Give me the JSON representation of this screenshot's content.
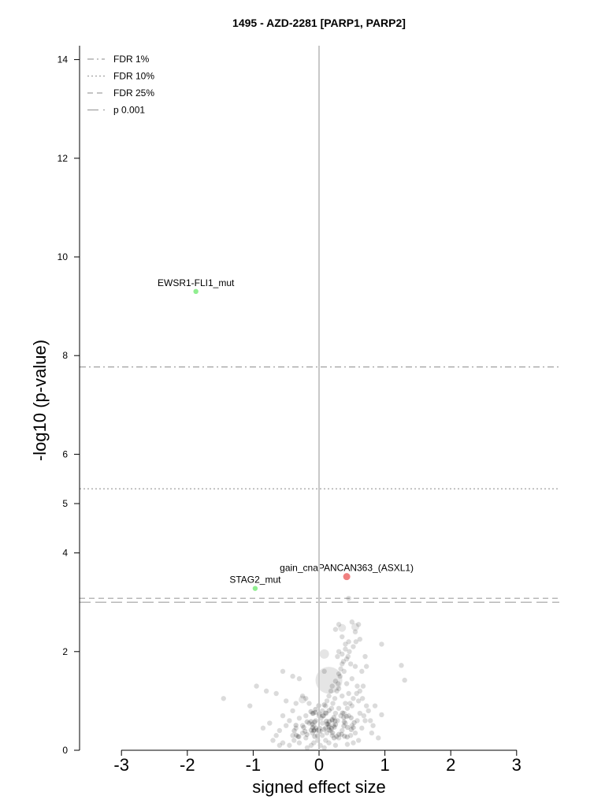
{
  "chart_data": {
    "type": "scatter",
    "title": "1495 - AZD-2281 [PARP1, PARP2]",
    "xlabel": "signed effect size",
    "ylabel": "-log10 (p-value)",
    "xlim": [
      -3.6,
      3.65
    ],
    "ylim": [
      0,
      14.3
    ],
    "x_ticks": [
      -3,
      -2,
      -1,
      0,
      1,
      2,
      3
    ],
    "y_ticks": [
      0,
      2,
      4,
      5,
      6,
      8,
      10,
      12,
      14
    ],
    "grid": false,
    "legend_position": "top-left",
    "thresholds": [
      {
        "name": "FDR 1%",
        "y": 7.77,
        "style": "dashdot"
      },
      {
        "name": "FDR 10%",
        "y": 5.3,
        "style": "dotted"
      },
      {
        "name": "FDR 25%",
        "y": 3.08,
        "style": "dashed"
      },
      {
        "name": "p 0.001",
        "y": 3.0,
        "style": "longdash"
      }
    ],
    "highlighted_points": [
      {
        "label": "EWSR1-FLI1_mut",
        "x": -1.87,
        "y": 9.3,
        "color": "#90ee90"
      },
      {
        "label": "gain_cnaPANCAN363_(ASXL1)",
        "x": 0.42,
        "y": 3.52,
        "color": "#f08080"
      },
      {
        "label": "STAG2_mut",
        "x": -0.97,
        "y": 3.28,
        "color": "#90ee90"
      }
    ],
    "background_points": [
      [
        0.45,
        3.08
      ],
      [
        -1.45,
        1.05
      ],
      [
        -0.95,
        1.3
      ],
      [
        -1.05,
        0.9
      ],
      [
        -0.55,
        1.6
      ],
      [
        -0.4,
        1.5
      ],
      [
        -0.3,
        1.45
      ],
      [
        -0.8,
        1.2
      ],
      [
        -0.65,
        1.15
      ],
      [
        -0.2,
        1.05
      ],
      [
        0.3,
        2.55
      ],
      [
        0.25,
        2.45
      ],
      [
        0.35,
        2.3
      ],
      [
        0.4,
        2.15
      ],
      [
        0.3,
        2.0
      ],
      [
        0.28,
        1.9
      ],
      [
        0.5,
        2.6
      ],
      [
        0.6,
        2.55
      ],
      [
        0.55,
        2.4
      ],
      [
        0.62,
        2.25
      ],
      [
        0.45,
        2.2
      ],
      [
        0.4,
        2.05
      ],
      [
        0.35,
        1.95
      ],
      [
        0.42,
        1.85
      ],
      [
        0.48,
        1.75
      ],
      [
        0.55,
        1.7
      ],
      [
        0.65,
        1.6
      ],
      [
        0.38,
        1.6
      ],
      [
        0.3,
        1.55
      ],
      [
        0.25,
        1.4
      ],
      [
        0.2,
        1.3
      ],
      [
        0.18,
        1.2
      ],
      [
        0.15,
        1.1
      ],
      [
        0.12,
        1.0
      ],
      [
        0.3,
        1.25
      ],
      [
        0.35,
        1.1
      ],
      [
        0.42,
        1.35
      ],
      [
        0.5,
        1.45
      ],
      [
        0.58,
        1.3
      ],
      [
        0.45,
        1.15
      ],
      [
        0.6,
        1.0
      ],
      [
        0.5,
        0.9
      ],
      [
        0.4,
        0.95
      ],
      [
        0.7,
        1.9
      ],
      [
        0.72,
        1.7
      ],
      [
        0.95,
        2.15
      ],
      [
        1.25,
        1.72
      ],
      [
        1.3,
        1.42
      ],
      [
        0.85,
        0.9
      ],
      [
        0.95,
        0.72
      ],
      [
        0.7,
        0.6
      ],
      [
        0.8,
        0.35
      ],
      [
        0.9,
        0.25
      ],
      [
        0.08,
        1.6
      ],
      [
        0.1,
        0.9
      ],
      [
        0.05,
        0.8
      ],
      [
        0.0,
        0.7
      ],
      [
        -0.05,
        0.6
      ],
      [
        -0.1,
        0.75
      ],
      [
        -0.15,
        0.55
      ],
      [
        -0.2,
        0.7
      ],
      [
        -0.25,
        0.5
      ],
      [
        -0.3,
        0.65
      ],
      [
        -0.35,
        0.45
      ],
      [
        -0.4,
        0.8
      ],
      [
        -0.45,
        0.6
      ],
      [
        -0.5,
        0.5
      ],
      [
        -0.55,
        0.7
      ],
      [
        -0.6,
        0.4
      ],
      [
        -0.65,
        0.3
      ],
      [
        -0.7,
        0.2
      ],
      [
        -0.5,
        1.0
      ],
      [
        -0.35,
        0.95
      ],
      [
        -0.25,
        1.1
      ],
      [
        -0.15,
        0.95
      ],
      [
        -0.1,
        0.35
      ],
      [
        -0.2,
        0.25
      ],
      [
        -0.3,
        0.15
      ],
      [
        -0.4,
        0.3
      ],
      [
        -0.45,
        0.1
      ],
      [
        0.05,
        0.3
      ],
      [
        0.1,
        0.2
      ],
      [
        0.15,
        0.15
      ],
      [
        0.2,
        0.3
      ],
      [
        0.25,
        0.1
      ],
      [
        0.3,
        0.25
      ],
      [
        0.35,
        0.4
      ],
      [
        0.4,
        0.55
      ],
      [
        0.45,
        0.7
      ],
      [
        0.5,
        0.5
      ],
      [
        0.55,
        0.35
      ],
      [
        0.6,
        0.2
      ],
      [
        0.65,
        0.45
      ],
      [
        0.2,
        0.6
      ],
      [
        0.25,
        0.75
      ],
      [
        0.3,
        0.85
      ],
      [
        0.15,
        0.5
      ],
      [
        0.1,
        0.45
      ],
      [
        0.05,
        0.55
      ],
      [
        0.0,
        0.4
      ],
      [
        -0.02,
        0.2
      ],
      [
        0.02,
        0.1
      ],
      [
        0.08,
        0.05
      ],
      [
        0.12,
        0.35
      ],
      [
        0.18,
        0.4
      ],
      [
        0.22,
        0.5
      ],
      [
        0.28,
        0.6
      ],
      [
        0.33,
        0.7
      ],
      [
        0.38,
        0.75
      ],
      [
        0.43,
        0.85
      ],
      [
        0.47,
        0.95
      ],
      [
        0.52,
        1.05
      ],
      [
        0.57,
        1.15
      ],
      [
        0.62,
        1.2
      ],
      [
        0.67,
        1.3
      ],
      [
        0.35,
        1.75
      ],
      [
        0.33,
        1.65
      ],
      [
        0.37,
        1.8
      ],
      [
        0.44,
        1.9
      ],
      [
        0.46,
        2.0
      ],
      [
        0.52,
        2.1
      ],
      [
        0.56,
        2.2
      ],
      [
        0.32,
        1.5
      ],
      [
        0.29,
        1.35
      ],
      [
        0.27,
        1.2
      ],
      [
        0.24,
        1.05
      ],
      [
        0.21,
        0.95
      ],
      [
        0.19,
        0.85
      ],
      [
        -0.08,
        0.15
      ],
      [
        -0.12,
        0.1
      ],
      [
        -0.18,
        0.05
      ],
      [
        -0.05,
        0.45
      ],
      [
        -0.08,
        0.5
      ],
      [
        0.03,
        0.65
      ],
      [
        0.07,
        0.7
      ],
      [
        0.11,
        0.75
      ],
      [
        -0.55,
        0.15
      ],
      [
        -0.6,
        0.1
      ],
      [
        -0.75,
        0.55
      ],
      [
        -0.85,
        0.45
      ],
      [
        0.75,
        0.8
      ],
      [
        0.78,
        0.6
      ],
      [
        0.82,
        0.5
      ],
      [
        0.68,
        0.7
      ],
      [
        0.72,
        0.9
      ],
      [
        0.66,
        1.05
      ],
      [
        -0.25,
        0.35
      ],
      [
        -0.32,
        0.28
      ],
      [
        -0.38,
        0.2
      ],
      [
        0.58,
        0.6
      ],
      [
        0.62,
        0.75
      ],
      [
        0.48,
        0.3
      ],
      [
        0.52,
        0.15
      ],
      [
        0.43,
        0.12
      ]
    ],
    "large_points": [
      {
        "x": 0.15,
        "y": 1.42,
        "size": 17
      },
      {
        "x": 0.08,
        "y": 1.95,
        "size": 6
      },
      {
        "x": 0.35,
        "y": 2.48,
        "size": 5
      },
      {
        "x": -0.25,
        "y": 1.03,
        "size": 5
      },
      {
        "x": 0.55,
        "y": 2.5,
        "size": 5
      }
    ]
  }
}
